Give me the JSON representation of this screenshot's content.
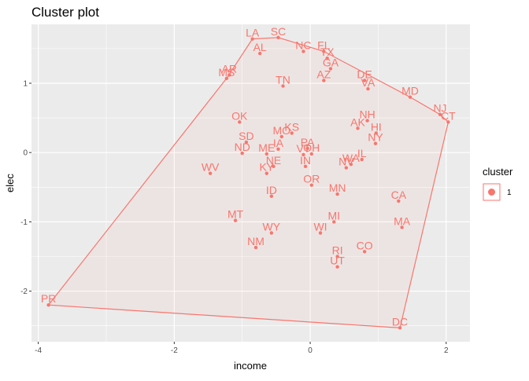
{
  "chart_data": {
    "type": "scatter",
    "title": "Cluster plot",
    "xlabel": "income",
    "ylabel": "elec",
    "xlim": [
      -4.1,
      2.35
    ],
    "ylim": [
      -2.73,
      1.85
    ],
    "x_ticks": [
      -4,
      -2,
      0,
      2
    ],
    "x_tick_labels": [
      "-4",
      "-2",
      "0",
      "2"
    ],
    "y_ticks": [
      -2,
      -1,
      0,
      1
    ],
    "y_tick_labels": [
      "-2",
      "-1",
      "0",
      "1"
    ],
    "grid": true,
    "legend": {
      "title": "cluster",
      "position": "right",
      "entries": [
        "1"
      ]
    },
    "colors": {
      "cluster": "#F8766D",
      "panel": "#EBEBEB",
      "grid": "#FFFFFF"
    },
    "series": [
      {
        "name": "1",
        "points": [
          {
            "label": "LA",
            "x": -0.85,
            "y": 1.64
          },
          {
            "label": "SC",
            "x": -0.47,
            "y": 1.66
          },
          {
            "label": "AL",
            "x": -0.74,
            "y": 1.43
          },
          {
            "label": "NC",
            "x": -0.1,
            "y": 1.46
          },
          {
            "label": "FL",
            "x": 0.2,
            "y": 1.46
          },
          {
            "label": "TX",
            "x": 0.25,
            "y": 1.36
          },
          {
            "label": "GA",
            "x": 0.3,
            "y": 1.21
          },
          {
            "label": "MS",
            "x": -1.23,
            "y": 1.07
          },
          {
            "label": "AR",
            "x": -1.19,
            "y": 1.12
          },
          {
            "label": "AZ",
            "x": 0.2,
            "y": 1.04
          },
          {
            "label": "TN",
            "x": -0.4,
            "y": 0.96
          },
          {
            "label": "DE",
            "x": 0.8,
            "y": 1.04
          },
          {
            "label": "VA",
            "x": 0.85,
            "y": 0.92
          },
          {
            "label": "MD",
            "x": 1.47,
            "y": 0.8
          },
          {
            "label": "NJ",
            "x": 1.91,
            "y": 0.55
          },
          {
            "label": "CT",
            "x": 2.03,
            "y": 0.44
          },
          {
            "label": "OK",
            "x": -1.04,
            "y": 0.44
          },
          {
            "label": "NH",
            "x": 0.84,
            "y": 0.46
          },
          {
            "label": "AK",
            "x": 0.7,
            "y": 0.35
          },
          {
            "label": "HI",
            "x": 0.97,
            "y": 0.28
          },
          {
            "label": "NY",
            "x": 0.96,
            "y": 0.13
          },
          {
            "label": "KS",
            "x": -0.27,
            "y": 0.28
          },
          {
            "label": "MO",
            "x": -0.42,
            "y": 0.23
          },
          {
            "label": "SD",
            "x": -0.94,
            "y": 0.15
          },
          {
            "label": "IA",
            "x": -0.47,
            "y": 0.05
          },
          {
            "label": "ND",
            "x": -1.0,
            "y": -0.01
          },
          {
            "label": "ME",
            "x": -0.64,
            "y": -0.02
          },
          {
            "label": "PA",
            "x": -0.04,
            "y": 0.06
          },
          {
            "label": "VT",
            "x": -0.1,
            "y": -0.03
          },
          {
            "label": "OH",
            "x": 0.02,
            "y": -0.02
          },
          {
            "label": "IN",
            "x": -0.07,
            "y": -0.2
          },
          {
            "label": "IL",
            "x": 0.76,
            "y": -0.1
          },
          {
            "label": "WA",
            "x": 0.6,
            "y": -0.17
          },
          {
            "label": "NV",
            "x": 0.53,
            "y": -0.22
          },
          {
            "label": "KY",
            "x": -0.64,
            "y": -0.3
          },
          {
            "label": "NE",
            "x": -0.54,
            "y": -0.2
          },
          {
            "label": "WV",
            "x": -1.47,
            "y": -0.3
          },
          {
            "label": "OR",
            "x": 0.02,
            "y": -0.47
          },
          {
            "label": "ID",
            "x": -0.57,
            "y": -0.63
          },
          {
            "label": "MN",
            "x": 0.4,
            "y": -0.6
          },
          {
            "label": "CA",
            "x": 1.3,
            "y": -0.7
          },
          {
            "label": "MT",
            "x": -1.1,
            "y": -0.98
          },
          {
            "label": "MI",
            "x": 0.35,
            "y": -1.0
          },
          {
            "label": "MA",
            "x": 1.35,
            "y": -1.08
          },
          {
            "label": "WY",
            "x": -0.57,
            "y": -1.16
          },
          {
            "label": "WI",
            "x": 0.15,
            "y": -1.16
          },
          {
            "label": "NM",
            "x": -0.8,
            "y": -1.37
          },
          {
            "label": "RI",
            "x": 0.4,
            "y": -1.5
          },
          {
            "label": "CO",
            "x": 0.8,
            "y": -1.43
          },
          {
            "label": "UT",
            "x": 0.4,
            "y": -1.65
          },
          {
            "label": "PR",
            "x": -3.85,
            "y": -2.2
          },
          {
            "label": "DC",
            "x": 1.32,
            "y": -2.53
          }
        ],
        "hull": [
          "SC",
          "FL",
          "MD",
          "NJ",
          "CT",
          "DC",
          "PR",
          "MS",
          "LA"
        ]
      }
    ]
  }
}
